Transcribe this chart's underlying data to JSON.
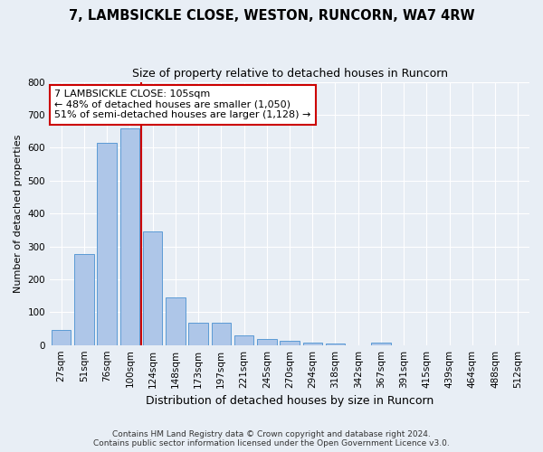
{
  "title_line1": "7, LAMBSICKLE CLOSE, WESTON, RUNCORN, WA7 4RW",
  "title_line2": "Size of property relative to detached houses in Runcorn",
  "xlabel": "Distribution of detached houses by size in Runcorn",
  "ylabel": "Number of detached properties",
  "footnote": "Contains HM Land Registry data © Crown copyright and database right 2024.\nContains public sector information licensed under the Open Government Licence v3.0.",
  "bar_labels": [
    "27sqm",
    "51sqm",
    "76sqm",
    "100sqm",
    "124sqm",
    "148sqm",
    "173sqm",
    "197sqm",
    "221sqm",
    "245sqm",
    "270sqm",
    "294sqm",
    "318sqm",
    "342sqm",
    "367sqm",
    "391sqm",
    "415sqm",
    "439sqm",
    "464sqm",
    "488sqm",
    "512sqm"
  ],
  "bar_values": [
    45,
    278,
    615,
    660,
    345,
    145,
    67,
    67,
    30,
    18,
    12,
    8,
    5,
    0,
    8,
    0,
    0,
    0,
    0,
    0,
    0
  ],
  "bar_color": "#aec6e8",
  "bar_edge_color": "#5b9bd5",
  "bg_color": "#e8eef5",
  "plot_bg_color": "#e8eef5",
  "grid_color": "#ffffff",
  "vline_x_index": 3.5,
  "vline_color": "#cc0000",
  "annotation_text": "7 LAMBSICKLE CLOSE: 105sqm\n← 48% of detached houses are smaller (1,050)\n51% of semi-detached houses are larger (1,128) →",
  "annotation_box_color": "#ffffff",
  "annotation_box_edge": "#cc0000",
  "ylim": [
    0,
    800
  ],
  "yticks": [
    0,
    100,
    200,
    300,
    400,
    500,
    600,
    700,
    800
  ],
  "title1_fontsize": 10.5,
  "title2_fontsize": 9,
  "ylabel_fontsize": 8,
  "xlabel_fontsize": 9,
  "tick_fontsize": 7.5,
  "footnote_fontsize": 6.5
}
